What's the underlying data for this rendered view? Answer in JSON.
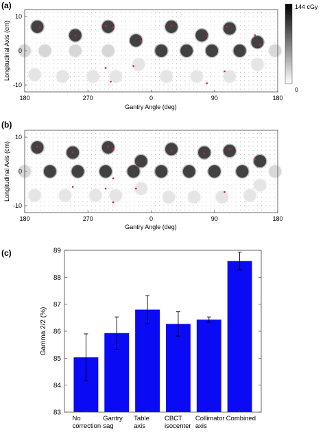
{
  "chart_data": [
    {
      "panel": "(a)",
      "type": "heatmap",
      "xlabel": "Gantry Angle (deg)",
      "ylabel": "Longitudinal Axis (cm)",
      "x_ticks": [
        "180",
        "270",
        "0",
        "90",
        "180"
      ],
      "y_ticks": [
        "10",
        "0",
        "-10"
      ],
      "colorbar": {
        "max_label": "144 cGy",
        "min_label": "0",
        "max": 144,
        "min": 0,
        "unit": "cGy"
      },
      "spots": [
        {
          "x": 0.05,
          "y": 7.0,
          "dose": 144
        },
        {
          "x": 0.2,
          "y": 4.5,
          "dose": 144
        },
        {
          "x": 0.33,
          "y": 7.0,
          "dose": 144
        },
        {
          "x": 0.44,
          "y": 3.0,
          "dose": 144
        },
        {
          "x": 0.58,
          "y": 7.0,
          "dose": 144
        },
        {
          "x": 0.7,
          "y": 4.5,
          "dose": 144
        },
        {
          "x": 0.81,
          "y": 6.5,
          "dose": 144
        },
        {
          "x": 0.92,
          "y": 2.5,
          "dose": 144
        },
        {
          "x": 0.0,
          "y": 0.0,
          "dose": 30
        },
        {
          "x": 0.08,
          "y": 0.0,
          "dose": 30
        },
        {
          "x": 0.2,
          "y": 0.0,
          "dose": 30
        },
        {
          "x": 0.33,
          "y": 0.0,
          "dose": 30
        },
        {
          "x": 0.54,
          "y": 0.0,
          "dose": 144
        },
        {
          "x": 0.64,
          "y": 0.0,
          "dose": 144
        },
        {
          "x": 0.74,
          "y": 0.0,
          "dose": 144
        },
        {
          "x": 0.85,
          "y": 0.0,
          "dose": 144
        },
        {
          "x": 0.99,
          "y": 0.0,
          "dose": 30
        },
        {
          "x": 0.04,
          "y": -7.0,
          "dose": 20
        },
        {
          "x": 0.15,
          "y": -7.5,
          "dose": 20
        },
        {
          "x": 0.27,
          "y": -7.5,
          "dose": 20
        },
        {
          "x": 0.36,
          "y": -7.5,
          "dose": 20
        },
        {
          "x": 0.45,
          "y": -4.0,
          "dose": 20
        },
        {
          "x": 0.56,
          "y": -7.5,
          "dose": 20
        },
        {
          "x": 0.68,
          "y": -7.5,
          "dose": 20
        },
        {
          "x": 0.81,
          "y": -7.5,
          "dose": 20
        },
        {
          "x": 0.92,
          "y": -4.0,
          "dose": 20
        }
      ],
      "red_markers": [
        {
          "x": 0.06,
          "y": 6.8
        },
        {
          "x": 0.2,
          "y": 4.4
        },
        {
          "x": 0.32,
          "y": 7.2
        },
        {
          "x": 0.35,
          "y": 6.8
        },
        {
          "x": 0.46,
          "y": 2.8
        },
        {
          "x": 0.58,
          "y": 7.2
        },
        {
          "x": 0.72,
          "y": 4.2
        },
        {
          "x": 0.8,
          "y": 7.0
        },
        {
          "x": 0.91,
          "y": 4.5
        },
        {
          "x": 0.93,
          "y": 1.8
        },
        {
          "x": 0.32,
          "y": -5.0
        },
        {
          "x": 0.34,
          "y": -9.0
        },
        {
          "x": 0.43,
          "y": -4.5
        },
        {
          "x": 0.79,
          "y": -6.0
        },
        {
          "x": 0.72,
          "y": -9.5
        }
      ]
    },
    {
      "panel": "(b)",
      "type": "heatmap",
      "xlabel": "Gantry Angle (deg)",
      "ylabel": "Longitudinal Axis (cm)",
      "x_ticks": [
        "180",
        "270",
        "0",
        "90",
        "180"
      ],
      "y_ticks": [
        "10",
        "0",
        "-10"
      ],
      "spots": [
        {
          "x": 0.05,
          "y": 7.0,
          "dose": 144
        },
        {
          "x": 0.19,
          "y": 5.5,
          "dose": 144
        },
        {
          "x": 0.33,
          "y": 7.0,
          "dose": 144
        },
        {
          "x": 0.46,
          "y": 3.0,
          "dose": 144
        },
        {
          "x": 0.58,
          "y": 6.5,
          "dose": 144
        },
        {
          "x": 0.71,
          "y": 5.5,
          "dose": 144
        },
        {
          "x": 0.81,
          "y": 6.0,
          "dose": 144
        },
        {
          "x": 0.93,
          "y": 3.0,
          "dose": 144
        },
        {
          "x": 0.0,
          "y": 0.0,
          "dose": 30
        },
        {
          "x": 0.1,
          "y": 0.0,
          "dose": 144
        },
        {
          "x": 0.21,
          "y": 0.0,
          "dose": 144
        },
        {
          "x": 0.32,
          "y": 0.0,
          "dose": 144
        },
        {
          "x": 0.43,
          "y": 0.0,
          "dose": 144
        },
        {
          "x": 0.54,
          "y": 0.0,
          "dose": 144
        },
        {
          "x": 0.65,
          "y": 0.0,
          "dose": 144
        },
        {
          "x": 0.75,
          "y": 0.0,
          "dose": 144
        },
        {
          "x": 0.86,
          "y": 0.0,
          "dose": 144
        },
        {
          "x": 0.99,
          "y": 0.0,
          "dose": 30
        },
        {
          "x": 0.04,
          "y": -7.0,
          "dose": 20
        },
        {
          "x": 0.16,
          "y": -7.0,
          "dose": 20
        },
        {
          "x": 0.28,
          "y": -7.0,
          "dose": 20
        },
        {
          "x": 0.36,
          "y": -7.0,
          "dose": 20
        },
        {
          "x": 0.46,
          "y": -5.0,
          "dose": 20
        },
        {
          "x": 0.57,
          "y": -7.5,
          "dose": 20
        },
        {
          "x": 0.67,
          "y": -7.5,
          "dose": 20
        },
        {
          "x": 0.78,
          "y": -7.5,
          "dose": 20
        },
        {
          "x": 0.89,
          "y": -7.0,
          "dose": 20
        },
        {
          "x": 0.93,
          "y": -4.0,
          "dose": 20
        }
      ],
      "red_markers": [
        {
          "x": 0.05,
          "y": 7.2
        },
        {
          "x": 0.19,
          "y": 5.6
        },
        {
          "x": 0.33,
          "y": 7.2
        },
        {
          "x": 0.35,
          "y": 6.5
        },
        {
          "x": 0.44,
          "y": 2.5
        },
        {
          "x": 0.58,
          "y": 6.0
        },
        {
          "x": 0.71,
          "y": 5.2
        },
        {
          "x": 0.81,
          "y": 6.5
        },
        {
          "x": 0.91,
          "y": 3.5
        },
        {
          "x": 0.19,
          "y": -4.5
        },
        {
          "x": 0.32,
          "y": -5.0
        },
        {
          "x": 0.35,
          "y": -9.0
        },
        {
          "x": 0.44,
          "y": -5.0
        },
        {
          "x": 0.79,
          "y": -6.0
        },
        {
          "x": 0.35,
          "y": -2.0
        }
      ]
    },
    {
      "panel": "(c)",
      "type": "bar",
      "categories": [
        "No correction",
        "Gantry sag",
        "Table axis",
        "CBCT isocenter",
        "Collimator axis",
        "Combined"
      ],
      "category_lines": [
        [
          "No",
          "correction"
        ],
        [
          "Gantry",
          "sag"
        ],
        [
          "Table",
          "axis"
        ],
        [
          "CBCT",
          "isocenter"
        ],
        [
          "Collimator",
          "axis"
        ],
        [
          "Combined",
          ""
        ]
      ],
      "values": [
        85.03,
        85.93,
        86.8,
        86.27,
        86.43,
        88.6
      ],
      "error": [
        0.87,
        0.6,
        0.52,
        0.45,
        0.1,
        0.33
      ],
      "xlabel": "",
      "ylabel": "Gamma 2/2 (%)",
      "ylim": [
        83,
        89
      ],
      "y_ticks": [
        83,
        84,
        85,
        86,
        87,
        88,
        89
      ],
      "bar_color": "#0a0af5",
      "grid": false
    }
  ]
}
